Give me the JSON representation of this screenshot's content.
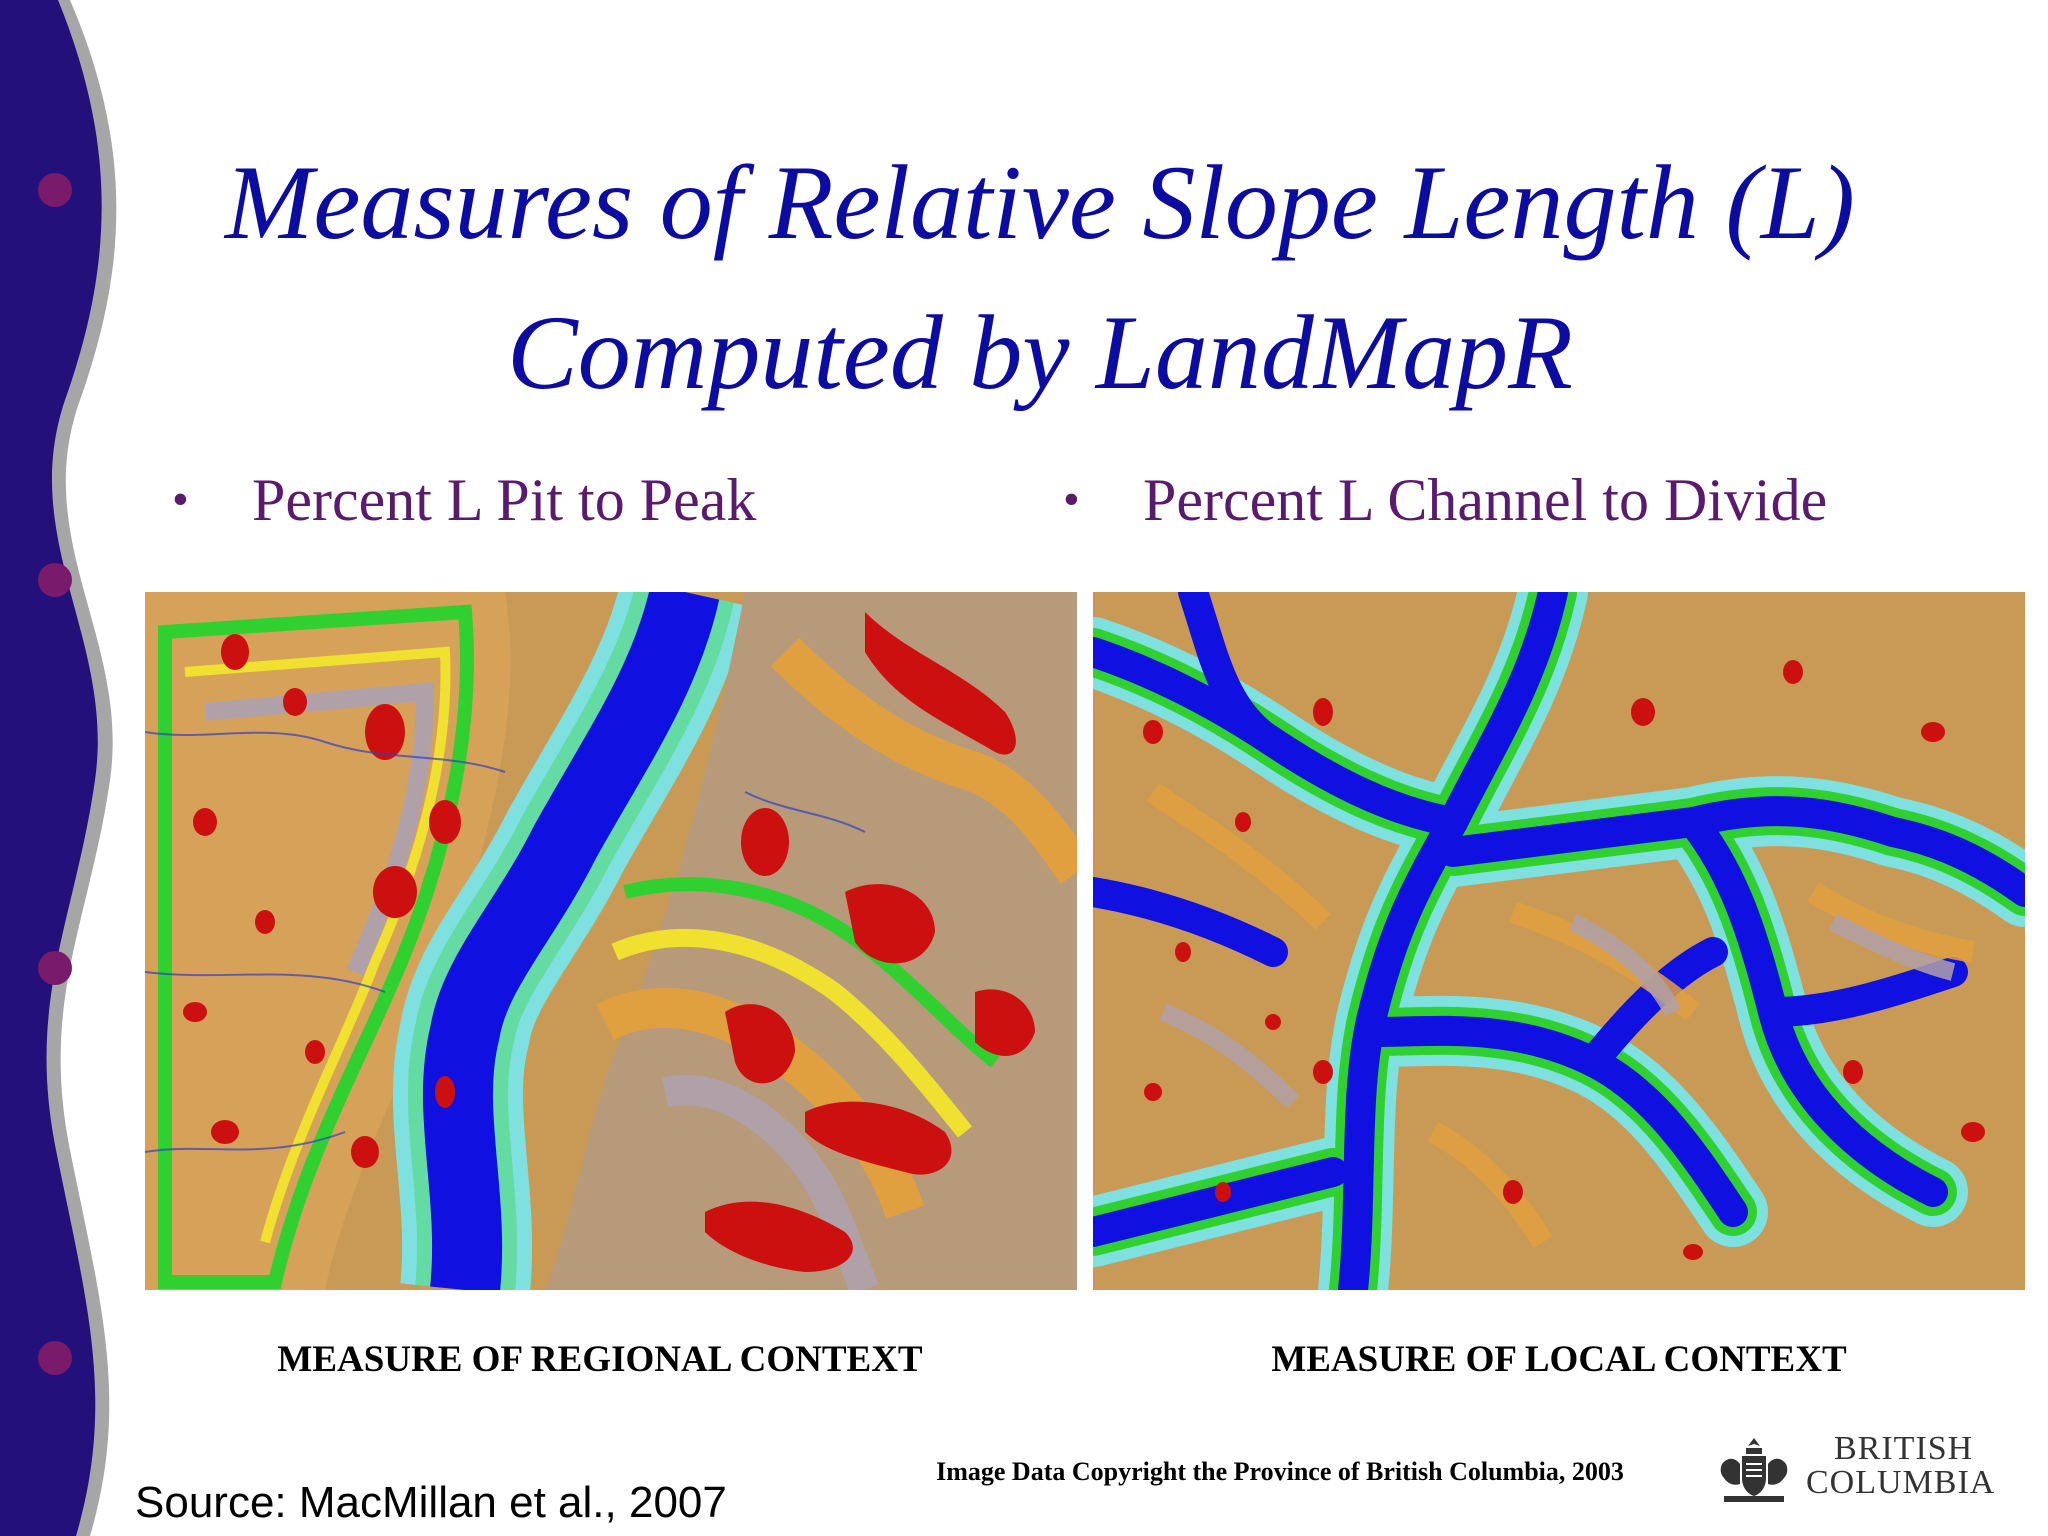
{
  "slide": {
    "title_line1": "Measures of Relative Slope Length (L)",
    "title_line2": "Computed by LandMapR",
    "bullets": [
      {
        "label": "Percent L Pit to Peak"
      },
      {
        "label": "Percent L Channel to Divide"
      }
    ],
    "captions": {
      "left": "MEASURE OF REGIONAL CONTEXT",
      "right": "MEASURE OF LOCAL CONTEXT"
    },
    "copyright": "Image Data Copyright the Province of British Columbia, 2003",
    "source": "Source: MacMillan et al., 2007",
    "logo": {
      "line1": "BRITISH",
      "line2": "COLUMBIA",
      "icon": "bc-crest-icon"
    }
  },
  "colors": {
    "sidebar": "#23107a",
    "sidebar_edge": "#a6a6a6",
    "sidebar_dots": "#7a1a6a",
    "title": "#0c0ca0",
    "bullet_text": "#5a1a6e",
    "map_colors": [
      "#c89a55",
      "#e0a040",
      "#b0a0a8",
      "#f0e030",
      "#30d030",
      "#7fe0e0",
      "#1010e0",
      "#cc1010"
    ]
  }
}
